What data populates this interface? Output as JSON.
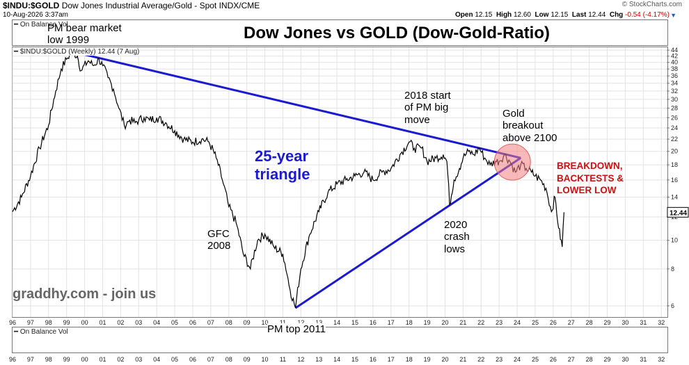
{
  "header": {
    "symbol": "$INDU:$GOLD",
    "description": "Dow Jones Industrial Average/Gold - Spot INDX/CME",
    "date": "10-Aug-2026 3:37am",
    "brand": "© StockCharts.com",
    "quote": {
      "open_label": "Open",
      "open": "12.15",
      "high_label": "High",
      "high": "12.60",
      "low_label": "Low",
      "low": "12.15",
      "last_label": "Last",
      "last": "12.44",
      "chg_label": "Chg",
      "chg": "-0.54 (-4.17%)"
    }
  },
  "panels": {
    "top_tag": "On Balance Vol",
    "main_tag": "$INDU:$GOLD (Weekly) 12.44 (7 Aug)",
    "bottom_tag": "On Balance Vol"
  },
  "annotations": {
    "title": "Dow Jones vs GOLD (Dow-Gold-Ratio)",
    "pm_bear_line1": "PM bear market",
    "pm_bear_line2": "low 1999",
    "triangle_line1": "25-year",
    "triangle_line2": "triangle",
    "start2018_line1": "2018 start",
    "start2018_line2": "of PM big",
    "start2018_line3": "move",
    "gold_line1": "Gold",
    "gold_line2": "breakout",
    "gold_line3": "above 2100",
    "breakdown_line1": "BREAKDOWN,",
    "breakdown_line2": "BACKTESTS &",
    "breakdown_line3": "LOWER LOW",
    "gfc_line1": "GFC",
    "gfc_line2": "2008",
    "crash_line1": "2020",
    "crash_line2": "crash",
    "crash_line3": "lows",
    "pmtop": "PM top 2011",
    "watermark": "graddhy.com - join us"
  },
  "colors": {
    "price_line": "#000000",
    "trendline": "#1a1ad0",
    "highlight_fill": "#f08080",
    "breakdown_text": "#cc1111",
    "grid": "#e3e3e3"
  },
  "chart_data": {
    "type": "line",
    "title": "Dow Jones vs GOLD (Dow-Gold-Ratio)",
    "series": [
      {
        "name": "$INDU:$GOLD (Weekly)",
        "x": [
          1996.0,
          1996.5,
          1997.0,
          1997.5,
          1998.0,
          1998.4,
          1998.7,
          1999.0,
          1999.3,
          1999.6,
          1999.8,
          2000.2,
          2000.5,
          2000.8,
          2001.0,
          2001.3,
          2001.6,
          2001.9,
          2002.2,
          2002.5,
          2002.8,
          2003.0,
          2003.3,
          2003.6,
          2004.0,
          2004.5,
          2005.0,
          2005.5,
          2006.0,
          2006.5,
          2006.9,
          2007.3,
          2007.7,
          2008.0,
          2008.4,
          2008.8,
          2009.2,
          2009.6,
          2010.0,
          2010.5,
          2011.0,
          2011.4,
          2011.7,
          2012.0,
          2012.5,
          2013.0,
          2013.5,
          2014.0,
          2014.5,
          2015.0,
          2015.5,
          2016.0,
          2016.5,
          2017.0,
          2017.5,
          2018.0,
          2018.3,
          2018.7,
          2019.0,
          2019.5,
          2019.9,
          2020.1,
          2020.25,
          2020.5,
          2020.8,
          2021.0,
          2021.3,
          2021.6,
          2021.9,
          2022.2,
          2022.5,
          2022.8,
          2023.0,
          2023.3,
          2023.6,
          2023.9,
          2024.2,
          2024.5,
          2024.8,
          2025.0,
          2025.3,
          2025.6,
          2025.9,
          2026.1,
          2026.3,
          2026.5,
          2026.6
        ],
        "y": [
          12.5,
          14.0,
          16.5,
          20.5,
          24.5,
          32.0,
          38.0,
          41.0,
          43.5,
          42.0,
          37.5,
          40.5,
          39.0,
          41.0,
          39.0,
          35.5,
          32.5,
          28.0,
          24.5,
          25.5,
          25.0,
          25.5,
          26.0,
          25.5,
          26.0,
          25.0,
          23.5,
          22.0,
          21.5,
          22.0,
          21.5,
          19.0,
          15.5,
          13.0,
          11.5,
          9.0,
          8.0,
          10.0,
          10.5,
          9.5,
          9.0,
          6.8,
          5.9,
          8.0,
          10.5,
          12.5,
          14.5,
          15.5,
          16.0,
          16.5,
          17.0,
          16.0,
          17.0,
          17.5,
          19.5,
          21.5,
          20.5,
          20.5,
          18.5,
          19.0,
          19.5,
          18.5,
          13.2,
          16.0,
          17.5,
          19.0,
          20.0,
          19.5,
          20.5,
          19.0,
          18.0,
          18.5,
          18.5,
          19.5,
          18.5,
          17.0,
          18.0,
          17.5,
          17.0,
          16.5,
          16.0,
          15.0,
          12.5,
          14.0,
          11.0,
          9.5,
          12.44
        ]
      }
    ],
    "trendlines": [
      {
        "from": [
          1999.3,
          43.5
        ],
        "to": [
          2024.2,
          19.0
        ]
      },
      {
        "from": [
          2011.7,
          5.9
        ],
        "to": [
          2024.2,
          19.0
        ]
      }
    ],
    "xlim": [
      1996,
      2032.3
    ],
    "x_tick_labels": [
      "96",
      "97",
      "98",
      "99",
      "00",
      "01",
      "02",
      "03",
      "04",
      "05",
      "06",
      "07",
      "08",
      "09",
      "10",
      "11",
      "12",
      "13",
      "14",
      "15",
      "16",
      "17",
      "18",
      "19",
      "20",
      "21",
      "22",
      "23",
      "24",
      "25",
      "26",
      "27",
      "28",
      "29",
      "30",
      "31",
      "32"
    ],
    "ylim": [
      5.5,
      45
    ],
    "y_scale": "log",
    "y_tick_labels": [
      "6",
      "8",
      "10",
      "12",
      "14",
      "16",
      "18",
      "20",
      "22",
      "24",
      "26",
      "28",
      "30",
      "32",
      "34",
      "36",
      "38",
      "40",
      "42",
      "44"
    ],
    "last_value": "12.44",
    "grid": true,
    "legend": "top-left"
  }
}
